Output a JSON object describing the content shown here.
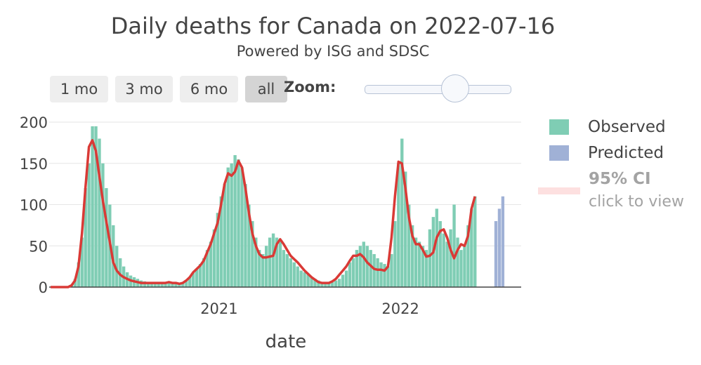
{
  "title": "Daily deaths for Canada on 2022-07-16",
  "subtitle": "Powered by ISG and SDSC",
  "range_buttons": [
    {
      "label": "1 mo",
      "active": false
    },
    {
      "label": "3 mo",
      "active": false
    },
    {
      "label": "6 mo",
      "active": false
    },
    {
      "label": "all",
      "active": true
    }
  ],
  "zoom": {
    "label": "Zoom:",
    "value": 0.58
  },
  "legend": [
    {
      "label": "Observed",
      "color": "#7fcdb4"
    },
    {
      "label": "Predicted",
      "color": "#a0b1d6"
    },
    {
      "label": "95% CI",
      "hint": "click to view",
      "color": "#fde0e0"
    }
  ],
  "chart_data": {
    "type": "bar",
    "title": "Daily deaths for Canada on 2022-07-16",
    "xlabel": "date",
    "ylabel": "",
    "x_range": [
      "2020-01-25",
      "2022-09-01"
    ],
    "ylim": [
      -10,
      220
    ],
    "yticks": [
      0,
      50,
      100,
      150,
      200
    ],
    "xticks": [
      {
        "label": "2021",
        "date": "2021-01-01"
      },
      {
        "label": "2022",
        "date": "2022-01-01"
      }
    ],
    "colors": {
      "observed": "#7fcdb4",
      "predicted": "#a0b1d6",
      "trend": "#d93a36"
    },
    "series": [
      {
        "name": "Observed",
        "start_date": "2020-01-25",
        "step_days": 7,
        "values": [
          0,
          0,
          0,
          0,
          0,
          0,
          2,
          10,
          30,
          60,
          120,
          150,
          195,
          195,
          180,
          150,
          120,
          100,
          75,
          50,
          35,
          25,
          18,
          14,
          12,
          10,
          8,
          7,
          6,
          5,
          5,
          6,
          5,
          5,
          6,
          5,
          5,
          4,
          6,
          8,
          12,
          18,
          22,
          28,
          35,
          45,
          55,
          70,
          90,
          110,
          125,
          145,
          150,
          160,
          155,
          145,
          125,
          100,
          80,
          60,
          45,
          40,
          50,
          60,
          65,
          60,
          55,
          45,
          40,
          35,
          30,
          25,
          20,
          18,
          15,
          12,
          10,
          8,
          6,
          5,
          5,
          6,
          8,
          10,
          15,
          20,
          30,
          35,
          45,
          50,
          55,
          50,
          45,
          40,
          35,
          30,
          28,
          25,
          40,
          80,
          150,
          180,
          140,
          100,
          75,
          60,
          55,
          50,
          45,
          70,
          85,
          95,
          80,
          65,
          55,
          70,
          100,
          60,
          45,
          50,
          75,
          95,
          110
        ]
      },
      {
        "name": "Predicted",
        "start_date": "2022-07-09",
        "step_days": 7,
        "values": [
          80,
          95,
          110
        ]
      },
      {
        "name": "Trend",
        "type": "line",
        "start_date": "2020-01-25",
        "step_days": 7,
        "values": [
          0,
          0,
          0,
          0,
          0,
          0,
          2,
          8,
          25,
          65,
          120,
          170,
          178,
          165,
          135,
          105,
          80,
          55,
          30,
          20,
          15,
          12,
          10,
          8,
          7,
          6,
          5,
          5,
          5,
          5,
          5,
          5,
          5,
          5,
          6,
          5,
          5,
          4,
          5,
          8,
          12,
          18,
          22,
          26,
          32,
          42,
          52,
          65,
          78,
          100,
          125,
          138,
          135,
          140,
          153,
          145,
          120,
          90,
          65,
          50,
          40,
          36,
          36,
          37,
          38,
          52,
          58,
          52,
          45,
          38,
          34,
          30,
          25,
          20,
          16,
          12,
          9,
          6,
          5,
          5,
          5,
          7,
          10,
          15,
          20,
          25,
          32,
          38,
          38,
          40,
          36,
          30,
          26,
          22,
          21,
          21,
          20,
          25,
          60,
          110,
          152,
          150,
          120,
          85,
          62,
          52,
          52,
          45,
          37,
          38,
          42,
          60,
          68,
          70,
          60,
          45,
          35,
          45,
          52,
          50,
          62,
          95,
          110
        ]
      }
    ]
  }
}
